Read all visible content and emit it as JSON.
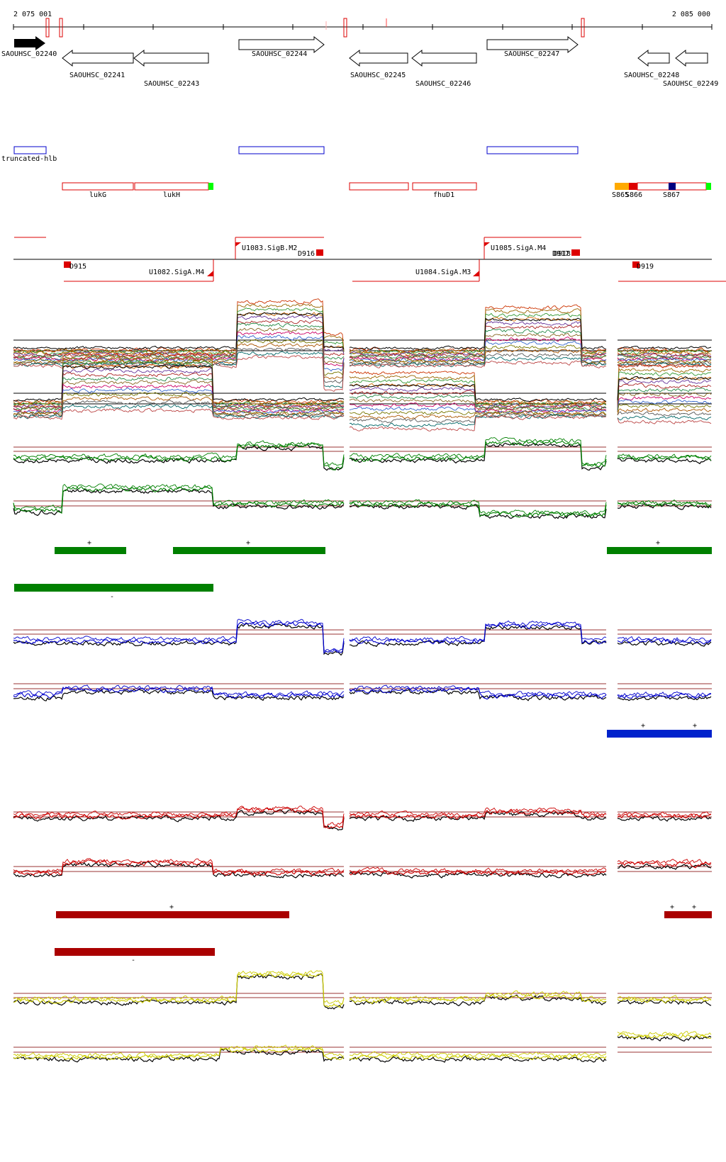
{
  "coordinates": {
    "start_label": "2 075 001",
    "end_label": "2 085 000"
  },
  "genes": [
    {
      "name": "SAOUHSC_02240",
      "strand": "+",
      "filled": true
    },
    {
      "name": "SAOUHSC_02241",
      "strand": "-",
      "filled": false
    },
    {
      "name": "SAOUHSC_02243",
      "strand": "-",
      "filled": false
    },
    {
      "name": "SAOUHSC_02244",
      "strand": "+",
      "filled": false
    },
    {
      "name": "SAOUHSC_02245",
      "strand": "-",
      "filled": false
    },
    {
      "name": "SAOUHSC_02246",
      "strand": "-",
      "filled": false
    },
    {
      "name": "SAOUHSC_02247",
      "strand": "+",
      "filled": false
    },
    {
      "name": "SAOUHSC_02248",
      "strand": "-",
      "filled": false
    },
    {
      "name": "SAOUHSC_02249",
      "strand": "-",
      "filled": false
    }
  ],
  "blue_features": [
    {
      "label": "truncated-hlb"
    }
  ],
  "red_features": [
    {
      "label": "lukG"
    },
    {
      "label": "lukH"
    },
    {
      "label": "fhuD1"
    }
  ],
  "s_features": [
    {
      "label": "S865"
    },
    {
      "label": "S866"
    },
    {
      "label": "S867"
    }
  ],
  "promoters": [
    {
      "label": "U1083.SigB.M2",
      "strand": "+"
    },
    {
      "label": "U1085.SigA.M4",
      "strand": "+"
    },
    {
      "label": "U1082.SigA.M4",
      "strand": "-"
    },
    {
      "label": "U1084.SigA.M3",
      "strand": "-"
    }
  ],
  "d_features": [
    {
      "label": "D915"
    },
    {
      "label": "D916"
    },
    {
      "label": "D917"
    },
    {
      "label": "D918"
    },
    {
      "label": "D919"
    }
  ],
  "segment_marks": {
    "plus": "+",
    "minus": "-"
  },
  "colors": {
    "gene_filled": "#000000",
    "feature_blue": "#0000cc",
    "feature_red": "#dd0000",
    "green_series": "#008000",
    "blue_series": "#0000cc",
    "red_series": "#cc0000",
    "yellow_series": "#cccc00",
    "segment_green": "#008000",
    "segment_blue": "#0022cc",
    "segment_red": "#aa0000",
    "threshold_line": "#993333",
    "s_orange": "#ffaa00",
    "s_red": "#dd0000",
    "s_navy": "#000080",
    "s_green": "#00ff00"
  }
}
